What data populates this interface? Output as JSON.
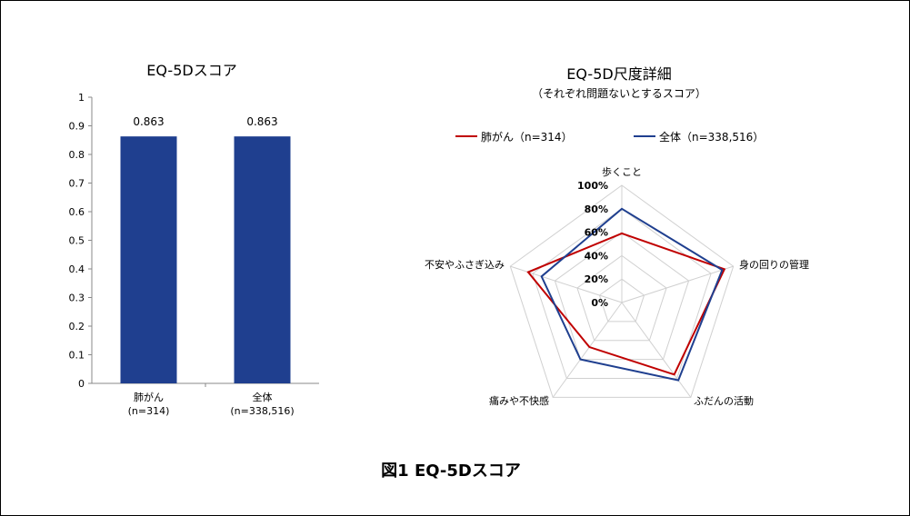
{
  "figure_caption": "図1 EQ-5Dスコア",
  "chart_data": [
    {
      "type": "bar",
      "title": "EQ-5Dスコア",
      "categories": [
        "肺がん\n(n=314)",
        "全体\n(n=338,516)"
      ],
      "values": [
        0.863,
        0.863
      ],
      "data_labels": [
        "0.863",
        "0.863"
      ],
      "ylim": [
        0,
        1
      ],
      "yticks": [
        "0",
        "0.1",
        "0.2",
        "0.3",
        "0.4",
        "0.5",
        "0.6",
        "0.7",
        "0.8",
        "0.9",
        "1"
      ],
      "color": "#1F3F8F",
      "grid": false
    },
    {
      "type": "radar",
      "title": "EQ-5D尺度詳細",
      "subtitle": "（それぞれ問題ないとするスコア）",
      "axes": [
        "歩くこと",
        "身の回りの管理",
        "ふだんの活動",
        "痛みや不快感",
        "不安やふさぎ込み"
      ],
      "rticks": [
        "0%",
        "20%",
        "40%",
        "60%",
        "80%",
        "100%"
      ],
      "rlim": [
        0,
        100
      ],
      "legend_position": "top",
      "series": [
        {
          "name": "肺がん（n=314）",
          "color": "#C00000",
          "values": [
            59,
            92,
            76,
            47,
            84
          ]
        },
        {
          "name": "全体（n=338,516）",
          "color": "#1F3F8F",
          "values": [
            80,
            90,
            82,
            60,
            72
          ]
        }
      ]
    }
  ]
}
